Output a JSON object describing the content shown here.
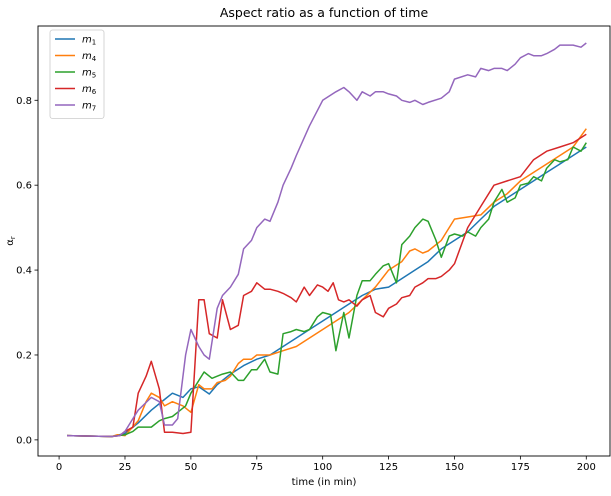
{
  "chart_data": {
    "type": "line",
    "title": "Aspect ratio as a function of time",
    "xlabel": "time (in min)",
    "ylabel": "α_r",
    "xlim": [
      -8,
      209
    ],
    "ylim": [
      -0.038,
      0.975
    ],
    "xticks": [
      0,
      25,
      50,
      75,
      100,
      125,
      150,
      175,
      200
    ],
    "yticks": [
      0.0,
      0.2,
      0.4,
      0.6,
      0.8
    ],
    "grid": false,
    "legend_position": "top-left",
    "series": [
      {
        "name": "m1",
        "name_base": "m",
        "name_sub": "1",
        "color": "#1f77b4",
        "x": [
          3,
          10,
          20,
          25,
          30,
          35,
          40,
          43,
          47,
          50,
          53,
          57,
          60,
          65,
          70,
          75,
          80,
          85,
          90,
          95,
          100,
          105,
          110,
          115,
          120,
          125,
          130,
          135,
          140,
          145,
          150,
          155,
          160,
          165,
          170,
          175,
          180,
          185,
          190,
          195,
          200
        ],
        "y": [
          0.01,
          0.009,
          0.008,
          0.015,
          0.04,
          0.07,
          0.095,
          0.11,
          0.1,
          0.12,
          0.125,
          0.108,
          0.13,
          0.155,
          0.175,
          0.19,
          0.2,
          0.22,
          0.24,
          0.26,
          0.28,
          0.3,
          0.32,
          0.34,
          0.355,
          0.36,
          0.38,
          0.4,
          0.42,
          0.45,
          0.47,
          0.49,
          0.52,
          0.55,
          0.57,
          0.59,
          0.61,
          0.63,
          0.65,
          0.67,
          0.69
        ]
      },
      {
        "name": "m4",
        "name_base": "m",
        "name_sub": "4",
        "color": "#ff7f0e",
        "x": [
          3,
          10,
          20,
          22,
          25,
          30,
          33,
          35,
          38,
          40,
          43,
          47,
          50,
          53,
          55,
          58,
          60,
          63,
          65,
          68,
          70,
          73,
          75,
          80,
          85,
          90,
          95,
          100,
          105,
          110,
          115,
          120,
          125,
          130,
          133,
          135,
          138,
          140,
          145,
          148,
          150,
          155,
          160,
          165,
          170,
          175,
          180,
          185,
          190,
          195,
          200
        ],
        "y": [
          0.01,
          0.009,
          0.008,
          0.012,
          0.01,
          0.045,
          0.09,
          0.11,
          0.1,
          0.08,
          0.09,
          0.08,
          0.065,
          0.13,
          0.12,
          0.12,
          0.135,
          0.14,
          0.15,
          0.18,
          0.19,
          0.19,
          0.2,
          0.2,
          0.21,
          0.22,
          0.24,
          0.26,
          0.28,
          0.3,
          0.33,
          0.36,
          0.4,
          0.42,
          0.445,
          0.45,
          0.44,
          0.445,
          0.47,
          0.5,
          0.52,
          0.525,
          0.53,
          0.56,
          0.58,
          0.61,
          0.63,
          0.65,
          0.67,
          0.69,
          0.733
        ]
      },
      {
        "name": "m5",
        "name_base": "m",
        "name_sub": "5",
        "color": "#2ca02c",
        "x": [
          3,
          10,
          20,
          25,
          28,
          30,
          35,
          38,
          40,
          43,
          45,
          48,
          50,
          55,
          58,
          60,
          62,
          65,
          68,
          70,
          73,
          75,
          78,
          80,
          83,
          85,
          88,
          90,
          93,
          95,
          98,
          100,
          103,
          105,
          108,
          110,
          113,
          115,
          118,
          120,
          123,
          125,
          128,
          130,
          133,
          135,
          138,
          140,
          143,
          145,
          148,
          150,
          153,
          155,
          158,
          160,
          163,
          165,
          168,
          170,
          173,
          175,
          178,
          180,
          183,
          185,
          188,
          190,
          193,
          195,
          198,
          200
        ],
        "y": [
          0.01,
          0.009,
          0.008,
          0.012,
          0.02,
          0.03,
          0.03,
          0.045,
          0.05,
          0.055,
          0.065,
          0.08,
          0.11,
          0.16,
          0.145,
          0.15,
          0.155,
          0.16,
          0.14,
          0.14,
          0.165,
          0.165,
          0.19,
          0.16,
          0.155,
          0.25,
          0.255,
          0.26,
          0.255,
          0.26,
          0.29,
          0.3,
          0.295,
          0.21,
          0.3,
          0.24,
          0.34,
          0.375,
          0.375,
          0.39,
          0.41,
          0.415,
          0.37,
          0.46,
          0.48,
          0.5,
          0.52,
          0.515,
          0.47,
          0.43,
          0.48,
          0.485,
          0.48,
          0.49,
          0.48,
          0.5,
          0.52,
          0.56,
          0.59,
          0.56,
          0.57,
          0.6,
          0.605,
          0.62,
          0.61,
          0.64,
          0.66,
          0.655,
          0.66,
          0.69,
          0.68,
          0.7
        ]
      },
      {
        "name": "m6",
        "name_base": "m",
        "name_sub": "6",
        "color": "#d62728",
        "x": [
          3,
          10,
          20,
          23,
          25,
          28,
          30,
          33,
          35,
          38,
          40,
          43,
          47,
          50,
          53,
          55,
          57,
          60,
          62,
          65,
          68,
          70,
          73,
          75,
          78,
          80,
          83,
          85,
          88,
          90,
          93,
          95,
          98,
          100,
          102,
          104,
          106,
          108,
          110,
          113,
          115,
          118,
          120,
          123,
          125,
          128,
          130,
          133,
          135,
          138,
          140,
          143,
          145,
          148,
          150,
          155,
          160,
          165,
          170,
          175,
          180,
          185,
          190,
          195,
          200
        ],
        "y": [
          0.01,
          0.009,
          0.008,
          0.01,
          0.02,
          0.03,
          0.11,
          0.15,
          0.185,
          0.12,
          0.018,
          0.018,
          0.015,
          0.018,
          0.33,
          0.33,
          0.25,
          0.24,
          0.33,
          0.26,
          0.27,
          0.34,
          0.35,
          0.37,
          0.355,
          0.355,
          0.35,
          0.345,
          0.335,
          0.325,
          0.36,
          0.34,
          0.365,
          0.36,
          0.35,
          0.37,
          0.33,
          0.325,
          0.33,
          0.315,
          0.33,
          0.34,
          0.3,
          0.29,
          0.31,
          0.32,
          0.335,
          0.34,
          0.36,
          0.37,
          0.38,
          0.38,
          0.385,
          0.4,
          0.415,
          0.5,
          0.55,
          0.6,
          0.61,
          0.62,
          0.66,
          0.68,
          0.69,
          0.7,
          0.72
        ]
      },
      {
        "name": "m7",
        "name_base": "m",
        "name_sub": "7",
        "color": "#9467bd",
        "x": [
          3,
          10,
          20,
          23,
          25,
          28,
          30,
          35,
          38,
          40,
          43,
          45,
          48,
          50,
          53,
          55,
          57,
          60,
          62,
          65,
          68,
          70,
          73,
          75,
          78,
          80,
          83,
          85,
          88,
          90,
          95,
          100,
          105,
          108,
          110,
          113,
          115,
          118,
          120,
          123,
          125,
          128,
          130,
          133,
          135,
          138,
          140,
          145,
          148,
          150,
          155,
          158,
          160,
          163,
          165,
          168,
          170,
          173,
          175,
          178,
          180,
          183,
          185,
          188,
          190,
          193,
          195,
          198,
          200
        ],
        "y": [
          0.01,
          0.009,
          0.008,
          0.01,
          0.02,
          0.05,
          0.07,
          0.1,
          0.09,
          0.035,
          0.035,
          0.05,
          0.2,
          0.26,
          0.22,
          0.2,
          0.19,
          0.31,
          0.34,
          0.36,
          0.39,
          0.45,
          0.47,
          0.5,
          0.52,
          0.515,
          0.56,
          0.6,
          0.64,
          0.67,
          0.74,
          0.8,
          0.82,
          0.83,
          0.82,
          0.8,
          0.82,
          0.81,
          0.82,
          0.82,
          0.815,
          0.81,
          0.8,
          0.795,
          0.8,
          0.79,
          0.795,
          0.805,
          0.82,
          0.85,
          0.86,
          0.855,
          0.875,
          0.87,
          0.875,
          0.875,
          0.87,
          0.885,
          0.9,
          0.91,
          0.905,
          0.905,
          0.91,
          0.92,
          0.93,
          0.93,
          0.93,
          0.925,
          0.935
        ]
      }
    ]
  }
}
